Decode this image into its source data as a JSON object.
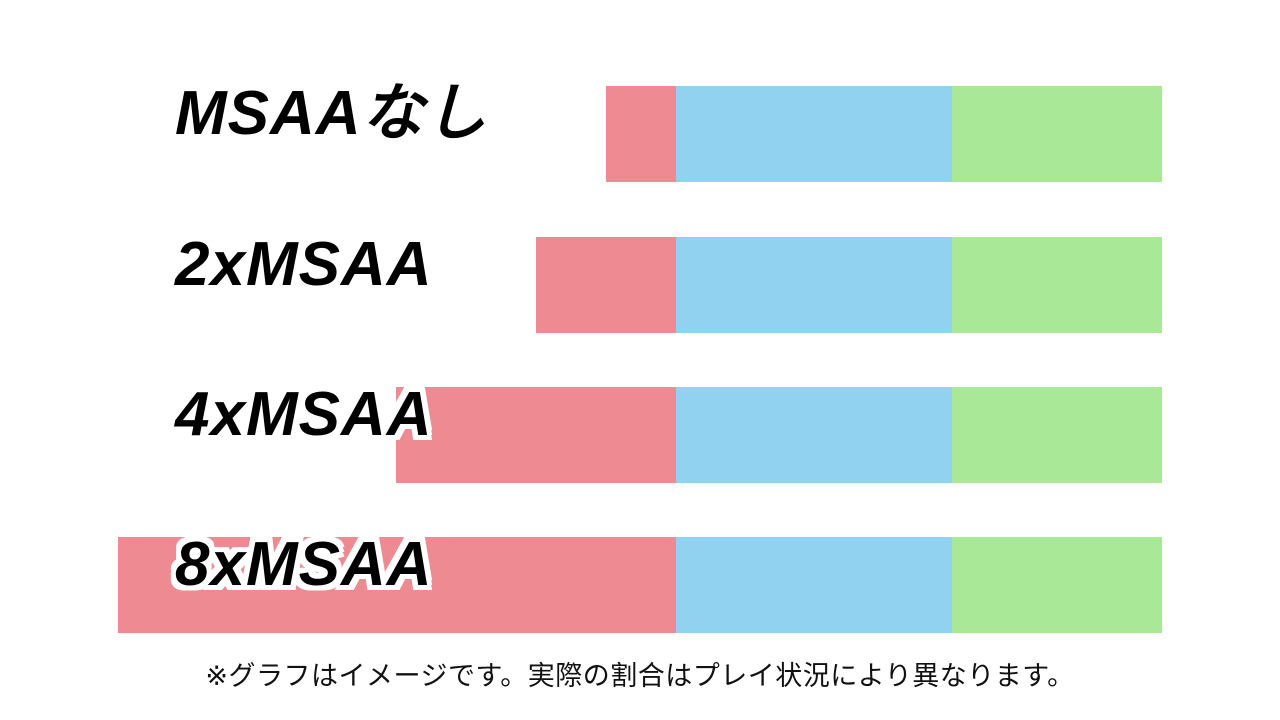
{
  "chart_data": {
    "type": "bar",
    "orientation": "horizontal",
    "stacked": true,
    "right_aligned": true,
    "title": "",
    "xlabel": "",
    "ylabel": "",
    "legend": "none",
    "grid": false,
    "categories": [
      "MSAAなし",
      "2xMSAA",
      "4xMSAA",
      "8xMSAA"
    ],
    "series": [
      {
        "name": "red-segment",
        "color": "#ee8a91",
        "values": [
          70,
          140,
          280,
          558
        ]
      },
      {
        "name": "blue-segment",
        "color": "#90d2f0",
        "values": [
          276,
          276,
          276,
          276
        ]
      },
      {
        "name": "green-segment",
        "color": "#a8e897",
        "values": [
          210,
          210,
          210,
          210
        ]
      }
    ],
    "value_unit": "px (relative segment width, bars share a common right edge)",
    "note": "※グラフはイメージです。実際の割合はプレイ状況により異なります。"
  },
  "caption": {
    "text": "※グラフはイメージです。実際の割合はプレイ状況により異なります。"
  }
}
